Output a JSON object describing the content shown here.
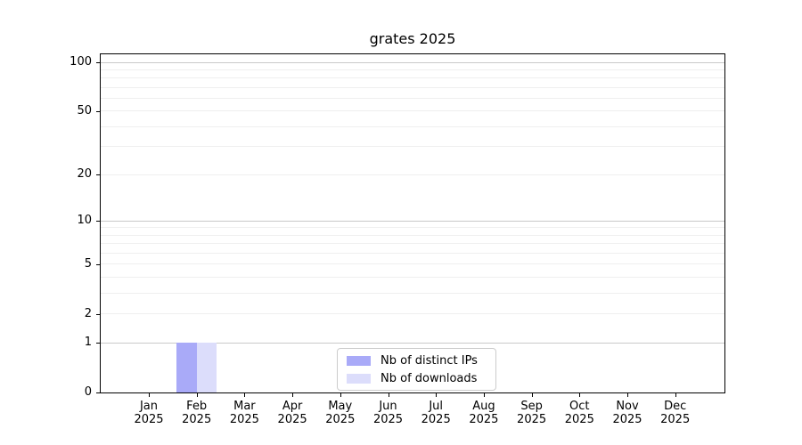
{
  "chart_data": {
    "type": "bar",
    "title": "grates 2025",
    "categories": [
      "Jan",
      "Feb",
      "Mar",
      "Apr",
      "May",
      "Jun",
      "Jul",
      "Aug",
      "Sep",
      "Oct",
      "Nov",
      "Dec"
    ],
    "category_year": "2025",
    "series": [
      {
        "name": "Nb of distinct IPs",
        "color": "#a9aaf8",
        "values": [
          0,
          1,
          0,
          0,
          0,
          0,
          0,
          0,
          0,
          0,
          0,
          0
        ]
      },
      {
        "name": "Nb of downloads",
        "color": "#dcddfb",
        "values": [
          0,
          1,
          0,
          0,
          0,
          0,
          0,
          0,
          0,
          0,
          0,
          0
        ]
      }
    ],
    "y_axis": {
      "scale": "log1p",
      "tick_values": [
        100,
        50,
        20,
        10,
        5,
        2,
        1,
        0
      ],
      "major_gridlines": [
        1,
        10,
        100
      ],
      "minor_gridlines": [
        2,
        3,
        4,
        5,
        6,
        7,
        8,
        9,
        20,
        30,
        40,
        50,
        60,
        70,
        80,
        90
      ],
      "range": [
        0,
        112
      ]
    },
    "legend": {
      "position": "lower center"
    },
    "grid": "horizontal-only",
    "colors": {
      "major_grid": "#c9c9c9",
      "minor_grid": "#efefef",
      "spine": "#000000",
      "text": "#000000",
      "legend_border": "#cccccc",
      "background": "#ffffff"
    }
  }
}
